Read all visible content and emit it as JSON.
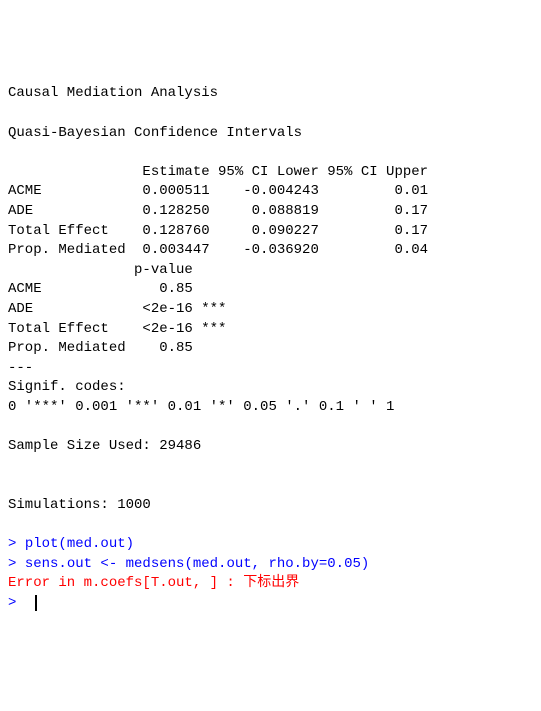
{
  "console": {
    "title1": "Causal Mediation Analysis",
    "title2": "Quasi-Bayesian Confidence Intervals",
    "table_header": "                Estimate 95% CI Lower 95% CI Upper",
    "rows_main": [
      "ACME            0.000511    -0.004243         0.01",
      "ADE             0.128250     0.088819         0.17",
      "Total Effect    0.128760     0.090227         0.17",
      "Prop. Mediated  0.003447    -0.036920         0.04"
    ],
    "pvalue_header": "               p-value",
    "rows_pvalue": [
      "ACME              0.85",
      "ADE             <2e-16 ***",
      "Total Effect    <2e-16 ***",
      "Prop. Mediated    0.85"
    ],
    "sep": "---",
    "signif_label": "Signif. codes:",
    "signif_codes": "0 '***' 0.001 '**' 0.01 '*' 0.05 '.' 0.1 ' ' 1",
    "sample_size": "Sample Size Used: 29486",
    "simulations": "Simulations: 1000",
    "prompt": "> ",
    "cmd1": "plot(med.out)",
    "cmd2": "sens.out <- medsens(med.out, rho.by=0.05)",
    "error": "Error in m.coefs[T.out, ] : 下标出界"
  },
  "colors": {
    "text": "#000000",
    "prompt": "#0000ff",
    "error": "#ff0000",
    "background": "#ffffff"
  }
}
